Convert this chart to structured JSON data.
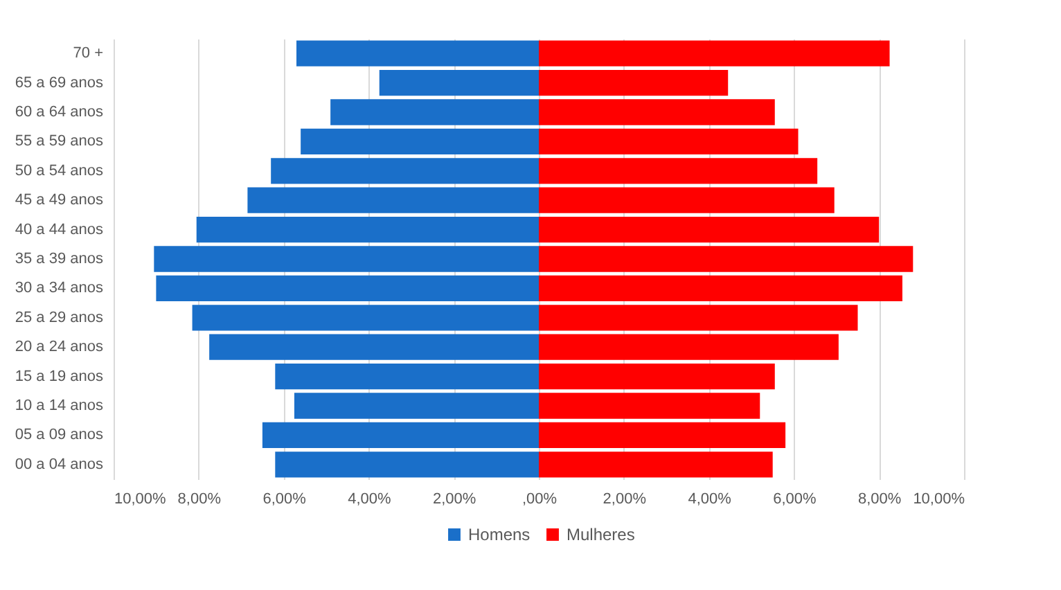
{
  "chart_data": {
    "type": "bar",
    "orientation": "horizontal",
    "stacked": true,
    "categories": [
      "70 +",
      "65 a 69 anos",
      "60 a 64 anos",
      "55 a 59 anos",
      "50 a 54 anos",
      "45 a 49 anos",
      "40 a 44 anos",
      "35 a 39 anos",
      "30 a 34 anos",
      "25 a 29 anos",
      "20 a 24 anos",
      "15 a 19 anos",
      "10 a 14 anos",
      "05 a 09 anos",
      "00 a 04 anos"
    ],
    "series": [
      {
        "name": "Homens",
        "color": "#1a6fc9",
        "values": [
          -5.7,
          -3.75,
          -4.9,
          -5.6,
          -6.3,
          -6.85,
          -8.05,
          -9.05,
          -9.0,
          -8.15,
          -7.75,
          -6.2,
          -5.75,
          -6.5,
          -6.2
        ]
      },
      {
        "name": "Mulheres",
        "color": "#ff0000",
        "values": [
          8.25,
          4.45,
          5.55,
          6.1,
          6.55,
          6.95,
          8.0,
          8.8,
          8.55,
          7.5,
          7.05,
          5.55,
          5.2,
          5.8,
          5.5
        ]
      }
    ],
    "xlim": [
      -10,
      10
    ],
    "xticks": [
      {
        "value": -10,
        "label": "10,00%"
      },
      {
        "value": -8,
        "label": "8,00%"
      },
      {
        "value": -6,
        "label": "6,00%"
      },
      {
        "value": -4,
        "label": "4,00%"
      },
      {
        "value": -2,
        "label": "2,00%"
      },
      {
        "value": 0,
        "label": ",00%"
      },
      {
        "value": 2,
        "label": "2,00%"
      },
      {
        "value": 4,
        "label": "4,00%"
      },
      {
        "value": 6,
        "label": "6,00%"
      },
      {
        "value": 8,
        "label": "8,00%"
      },
      {
        "value": 10,
        "label": "10,00%"
      }
    ],
    "grid": "x",
    "legend": "bottom"
  }
}
